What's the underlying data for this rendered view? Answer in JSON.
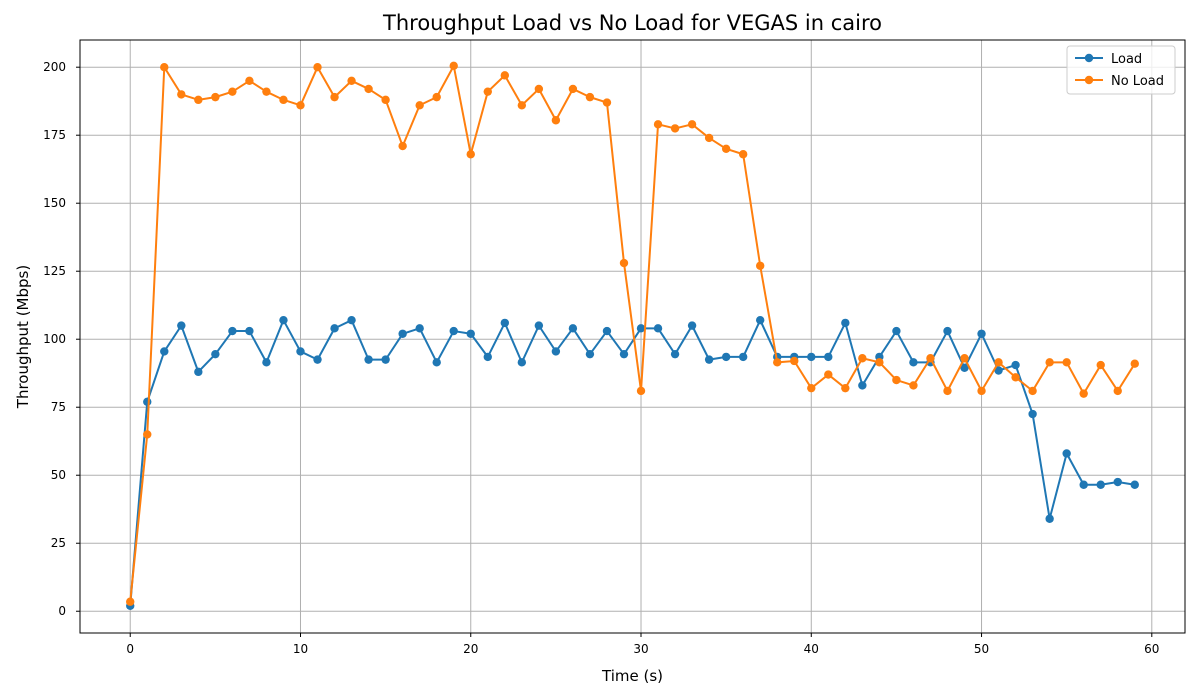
{
  "chart_data": {
    "type": "line",
    "title": "Throughput Load vs No Load for VEGAS in cairo",
    "xlabel": "Time (s)",
    "ylabel": "Throughput (Mbps)",
    "xlim": [
      -2.95,
      61.95
    ],
    "ylim": [
      -8,
      210
    ],
    "xticks": [
      0,
      10,
      20,
      30,
      40,
      50,
      60
    ],
    "yticks": [
      0,
      25,
      50,
      75,
      100,
      125,
      150,
      175,
      200
    ],
    "grid": true,
    "legend_position": "top-right",
    "x": [
      0,
      1,
      2,
      3,
      4,
      5,
      6,
      7,
      8,
      9,
      10,
      11,
      12,
      13,
      14,
      15,
      16,
      17,
      18,
      19,
      20,
      21,
      22,
      23,
      24,
      25,
      26,
      27,
      28,
      29,
      30,
      31,
      32,
      33,
      34,
      35,
      36,
      37,
      38,
      39,
      40,
      41,
      42,
      43,
      44,
      45,
      46,
      47,
      48,
      49,
      50,
      51,
      52,
      53,
      54,
      55,
      56,
      57,
      58,
      59
    ],
    "series": [
      {
        "name": "Load",
        "color": "#1f77b4",
        "values": [
          2,
          77,
          95.5,
          105,
          88,
          94.5,
          103,
          103,
          91.5,
          107,
          95.5,
          92.5,
          104,
          107,
          92.5,
          92.5,
          102,
          104,
          91.5,
          103,
          102,
          93.5,
          106,
          91.5,
          105,
          95.5,
          104,
          94.5,
          103,
          94.5,
          104,
          104,
          94.5,
          105,
          92.5,
          93.5,
          93.5,
          107,
          93.5,
          93.5,
          93.5,
          93.5,
          106,
          83,
          93.5,
          103,
          91.5,
          91.5,
          103,
          89.5,
          102,
          88.5,
          90.5,
          72.5,
          34,
          58,
          46.5,
          46.5,
          47.5,
          46.5
        ]
      },
      {
        "name": "No Load",
        "color": "#ff7f0e",
        "values": [
          3.5,
          65,
          200,
          190,
          188,
          189,
          191,
          195,
          191,
          188,
          186,
          200,
          189,
          195,
          192,
          188,
          171,
          186,
          189,
          200.5,
          168,
          191,
          197,
          186,
          192,
          180.5,
          192,
          189,
          187,
          128,
          81,
          179,
          177.5,
          179,
          174,
          170,
          168,
          127,
          91.5,
          92,
          82,
          87,
          82,
          93,
          91.5,
          85,
          83,
          93,
          81,
          93,
          81,
          91.5,
          86,
          81,
          91.5,
          91.5,
          80,
          90.5,
          81,
          91
        ]
      }
    ]
  }
}
